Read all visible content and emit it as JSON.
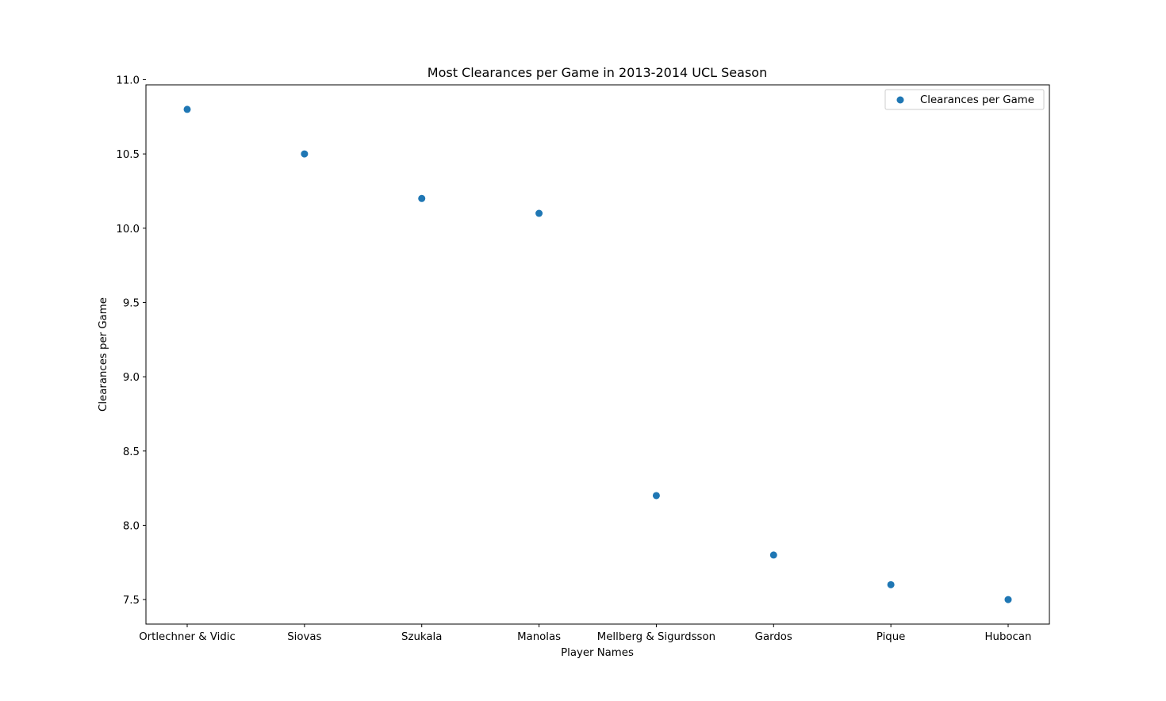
{
  "chart_data": {
    "type": "scatter",
    "title": "Most Clearances per Game in 2013-2014 UCL Season",
    "xlabel": "Player Names",
    "ylabel": "Clearances per Game",
    "categories": [
      "Ortlechner & Vidic",
      "Siovas",
      "Szukala",
      "Manolas",
      "Mellberg & Sigurdsson",
      "Gardos",
      "Pique",
      "Hubocan"
    ],
    "series": [
      {
        "name": "Clearances per Game",
        "values": [
          10.8,
          10.5,
          10.2,
          10.1,
          8.2,
          7.8,
          7.6,
          7.5
        ],
        "color": "#1f77b4"
      }
    ],
    "ylim": [
      7.335,
      10.965
    ],
    "yticks": [
      "7.5",
      "8.0",
      "8.5",
      "9.0",
      "9.5",
      "10.0",
      "10.5",
      "11.0"
    ],
    "grid": false,
    "legend": "top-right"
  }
}
